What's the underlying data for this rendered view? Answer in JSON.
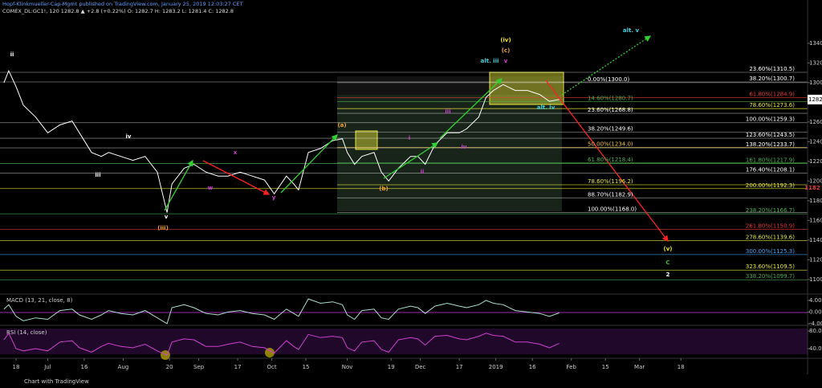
{
  "header": {
    "title": "Hopf-Klinkmueller-Cap-Mgmt published on TradingView.com, January 25, 2019 12:03:27 CET",
    "symbol": "COMEX_DL:GC1!, 120  1282.8  ▲ +2.8 (+0.22%)  O: 1282.7  H: 1283.2  L: 1281.4  C: 1282.8",
    "footer": "Chart with TradingView"
  },
  "chart_data": [
    {
      "type": "line",
      "x": [
        -5,
        -3,
        0,
        3,
        8,
        13,
        18,
        23,
        26,
        31,
        35,
        38,
        43,
        48,
        53,
        58,
        62,
        64,
        69,
        73,
        78,
        83,
        87,
        92,
        97,
        102,
        106,
        111,
        114,
        116,
        120,
        125,
        130,
        134,
        136,
        139,
        142,
        147,
        150,
        153,
        157,
        162,
        165,
        168,
        172,
        177,
        182,
        185,
        190,
        193,
        196,
        200,
        205,
        210,
        215,
        219,
        223
      ],
      "series": [
        {
          "color": "#ffffff",
          "values": [
            1300,
            1312,
            1296,
            1277,
            1265,
            1249,
            1257,
            1261,
            1249,
            1229,
            1225,
            1229,
            1225,
            1221,
            1225,
            1209,
            1168,
            1197,
            1213,
            1217,
            1209,
            1205,
            1205,
            1209,
            1205,
            1201,
            1187,
            1205,
            1197,
            1191,
            1229,
            1233,
            1241,
            1243,
            1229,
            1217,
            1225,
            1229,
            1209,
            1200,
            1213,
            1225,
            1225,
            1217,
            1237,
            1249,
            1249,
            1253,
            1265,
            1285,
            1292,
            1298,
            1292,
            1292,
            1288,
            1281,
            1282.8
          ]
        }
      ],
      "last": 1282.8,
      "xlim": [
        -6.6,
        325
      ],
      "xticks": [
        {
          "value": 0,
          "label": "18"
        },
        {
          "value": 13,
          "label": "Jul"
        },
        {
          "value": 28,
          "label": "16"
        },
        {
          "value": 44,
          "label": "Aug"
        },
        {
          "value": 63,
          "label": "20"
        },
        {
          "value": 75,
          "label": "Sep"
        },
        {
          "value": 91,
          "label": "17"
        },
        {
          "value": 105,
          "label": "Oct"
        },
        {
          "value": 119,
          "label": "15"
        },
        {
          "value": 136,
          "label": "Nov"
        },
        {
          "value": 154,
          "label": "19"
        },
        {
          "value": 166,
          "label": "Dec"
        },
        {
          "value": 182,
          "label": "17"
        },
        {
          "value": 197,
          "label": "2019"
        },
        {
          "value": 212,
          "label": "16"
        },
        {
          "value": 228,
          "label": "Feb"
        },
        {
          "value": 242,
          "label": "15"
        },
        {
          "value": 256,
          "label": "Mar"
        },
        {
          "value": 273,
          "label": "18"
        }
      ],
      "ylim": [
        1086,
        1366
      ],
      "yticks": [
        {
          "value": 1100,
          "label": "1100.0"
        },
        {
          "value": 1120,
          "label": "1120.0"
        },
        {
          "value": 1140,
          "label": "1140.0"
        },
        {
          "value": 1160,
          "label": "1160.0"
        },
        {
          "value": 1180,
          "label": "1180.0"
        },
        {
          "value": 1200,
          "label": "1200.0"
        },
        {
          "value": 1220,
          "label": "1220.0"
        },
        {
          "value": 1240,
          "label": "1240.0"
        },
        {
          "value": 1260,
          "label": "1260.0"
        },
        {
          "value": 1280,
          "label": "1280.0"
        },
        {
          "value": 1300,
          "label": "1300.0"
        },
        {
          "value": 1320,
          "label": "1320.0"
        },
        {
          "value": 1340,
          "label": "1340.0"
        }
      ],
      "levels": [
        {
          "label": "23.60%(1310.5)",
          "value": 1310.5,
          "color": "#ffffff"
        },
        {
          "label": "38.20%(1300.7)",
          "value": 1300.7,
          "color": "#ffffff"
        },
        {
          "label": "0.00%(1300.0)",
          "value": 1300.0,
          "color": "#ffffff"
        },
        {
          "label": "61.80%(1284.9)",
          "value": 1284.9,
          "color": "#e53935"
        },
        {
          "label": "14.60%(1280.7)",
          "value": 1280.7,
          "color": "#4caf50"
        },
        {
          "label": "78.60%(1273.6)",
          "value": 1273.6,
          "color": "#e8e83a"
        },
        {
          "label": "23.60%(1268.8)",
          "value": 1268.8,
          "color": "#ffffff"
        },
        {
          "label": "100.00%(1259.3)",
          "value": 1259.3,
          "color": "#ffffff"
        },
        {
          "label": "38.20%(1249.6)",
          "value": 1249.6,
          "color": "#ffffff"
        },
        {
          "label": "123.60%(1243.5)",
          "value": 1243.5,
          "color": "#ffffff"
        },
        {
          "label": "50.00%(1234.0)",
          "value": 1234.0,
          "color": "#f0c040"
        },
        {
          "label": "138.20%(1233.7)",
          "value": 1233.7,
          "color": "#ffffff"
        },
        {
          "label": "61.80%(1218.4)",
          "value": 1218.4,
          "color": "#4caf50"
        },
        {
          "label": "161.80%(1217.9)",
          "value": 1217.9,
          "color": "#4caf50"
        },
        {
          "label": "176.40%(1208.1)",
          "value": 1208.1,
          "color": "#ffffff"
        },
        {
          "label": "78.60%(1196.2)",
          "value": 1196.2,
          "color": "#e8e83a"
        },
        {
          "label": "200.00%(1192.3)",
          "value": 1192.3,
          "color": "#e8e83a"
        },
        {
          "label": "88.70%(1182.9)",
          "value": 1182.9,
          "color": "#ffffff"
        },
        {
          "label": "100.00%(1168.0)",
          "value": 1168.0,
          "color": "#ffffff"
        },
        {
          "label": "238.20%(1166.7)",
          "value": 1166.7,
          "color": "#4caf50"
        },
        {
          "label": "261.80%(1150.9)",
          "value": 1150.9,
          "color": "#e53935"
        },
        {
          "label": "278.60%(1139.6)",
          "value": 1139.6,
          "color": "#e8e83a"
        },
        {
          "label": "300.00%(1125.3)",
          "value": 1125.3,
          "color": "#42a5f5"
        },
        {
          "label": "323.60%(1109.5)",
          "value": 1109.5,
          "color": "#e8e83a"
        },
        {
          "label": "338.20%(1099.7)",
          "value": 1099.7,
          "color": "#4caf50"
        }
      ],
      "annotations": [
        {
          "text": "ii",
          "color": "#ffffff"
        },
        {
          "text": "iii",
          "color": "#ffffff"
        },
        {
          "text": "iv",
          "color": "#ffffff"
        },
        {
          "text": "v",
          "color": "#ffffff"
        },
        {
          "text": "(iii)",
          "color": "#f0a030"
        },
        {
          "text": "w",
          "color": "#d040d0"
        },
        {
          "text": "x",
          "color": "#d040d0"
        },
        {
          "text": "y",
          "color": "#d040d0"
        },
        {
          "text": "(a)",
          "color": "#f0a030"
        },
        {
          "text": "(b)",
          "color": "#f0a030"
        },
        {
          "text": "i",
          "color": "#d040d0"
        },
        {
          "text": "ii",
          "color": "#d040d0"
        },
        {
          "text": "iii",
          "color": "#d040d0"
        },
        {
          "text": "iv",
          "color": "#d040d0"
        },
        {
          "text": "v",
          "color": "#d040d0"
        },
        {
          "text": "(iv)",
          "color": "#f0e020"
        },
        {
          "text": "(c)",
          "color": "#f0a030"
        },
        {
          "text": "alt. iii",
          "color": "#40d0e0"
        },
        {
          "text": "alt. iv",
          "color": "#40d0e0"
        },
        {
          "text": "alt. v",
          "color": "#40d0e0"
        },
        {
          "text": "(v)",
          "color": "#f0e020"
        },
        {
          "text": "C",
          "color": "#30c030"
        },
        {
          "text": "2",
          "color": "#ffffff"
        },
        {
          "text": "1182",
          "color": "#e53935"
        }
      ]
    },
    {
      "type": "line",
      "title": "MACD (13, 21, close, 8)",
      "series": [
        {
          "color": "#a8e0d0",
          "values": [
            1.0,
            2.5,
            -1.5,
            -3.0,
            -2.0,
            -2.5,
            0.5,
            1.0,
            -1.0,
            -2.5,
            -1.0,
            0.5,
            -0.5,
            -1.0,
            0.5,
            -2.0,
            -4.0,
            1.5,
            2.5,
            1.5,
            -0.5,
            -1.0,
            0.0,
            0.5,
            -0.5,
            -1.0,
            -2.5,
            1.0,
            -0.5,
            -1.5,
            4.5,
            3.0,
            3.5,
            2.5,
            -1.0,
            -2.5,
            0.5,
            1.0,
            -2.0,
            -2.5,
            1.0,
            2.0,
            1.5,
            -0.5,
            2.0,
            3.0,
            2.0,
            1.5,
            2.5,
            4.0,
            3.0,
            2.5,
            0.5,
            0.0,
            -0.5,
            -1.5,
            -0.3
          ]
        }
      ],
      "ylim": [
        -4.3,
        5.9
      ],
      "yticks": [
        {
          "value": 4,
          "label": "4.0000"
        },
        {
          "value": 0,
          "label": "0.0000"
        },
        {
          "value": -4,
          "label": "-4.0000"
        }
      ]
    },
    {
      "type": "line",
      "title": "RSI (14, close)",
      "series": [
        {
          "color": "#d040d0",
          "values": [
            60,
            75,
            40,
            35,
            40,
            35,
            55,
            58,
            42,
            32,
            45,
            52,
            45,
            42,
            50,
            35,
            25,
            55,
            62,
            60,
            45,
            45,
            50,
            55,
            45,
            42,
            30,
            58,
            45,
            38,
            72,
            65,
            68,
            65,
            42,
            35,
            55,
            58,
            38,
            32,
            60,
            65,
            62,
            48,
            68,
            70,
            62,
            60,
            68,
            75,
            70,
            68,
            55,
            55,
            50,
            42,
            52
          ]
        }
      ],
      "ylim": [
        20,
        91
      ],
      "yticks": [
        {
          "value": 80,
          "label": "80.0000"
        },
        {
          "value": 40,
          "label": "40.0000"
        }
      ]
    }
  ]
}
